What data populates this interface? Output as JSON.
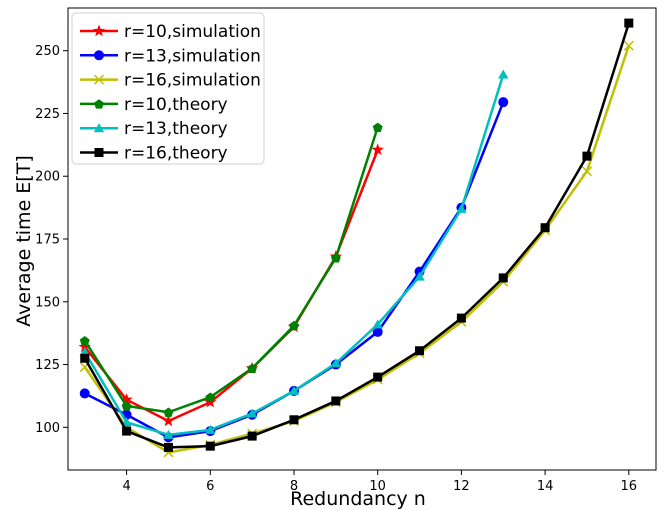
{
  "chart_data": {
    "type": "line",
    "title": "",
    "xlabel": "Redundancy n",
    "ylabel": "Average time E[T]",
    "xlim": [
      2.6,
      16.65
    ],
    "ylim": [
      83,
      267
    ],
    "xticks": [
      4,
      6,
      8,
      10,
      12,
      14,
      16
    ],
    "yticks": [
      100,
      125,
      150,
      175,
      200,
      225,
      250
    ],
    "grid": false,
    "legend_position": "top-left",
    "series": [
      {
        "name": "r=10,simulation",
        "color": "#ff0000",
        "marker": "star",
        "x": [
          3,
          4,
          5,
          6,
          7,
          8,
          9,
          10
        ],
        "y": [
          132,
          111,
          102.5,
          110,
          123.5,
          140,
          168,
          210.5
        ]
      },
      {
        "name": "r=13,simulation",
        "color": "#0000ff",
        "marker": "circle",
        "x": [
          3,
          4,
          5,
          6,
          7,
          8,
          9,
          10,
          11,
          12,
          13
        ],
        "y": [
          113.5,
          105,
          96,
          98.5,
          105,
          114.5,
          125,
          138,
          162,
          187.5,
          229.5
        ]
      },
      {
        "name": "r=16,simulation",
        "color": "#bfbf00",
        "marker": "x",
        "x": [
          3,
          4,
          5,
          6,
          7,
          8,
          9,
          10,
          11,
          12,
          13,
          14,
          15,
          16
        ],
        "y": [
          124,
          100,
          90,
          93,
          97.5,
          102.5,
          110,
          119,
          129.5,
          142,
          158,
          178.5,
          202,
          252
        ]
      },
      {
        "name": "r=10,theory",
        "color": "#008000",
        "marker": "pentagon",
        "x": [
          3,
          4,
          5,
          6,
          7,
          8,
          9,
          10
        ],
        "y": [
          134.5,
          108.5,
          106,
          112,
          123.5,
          140.5,
          167.5,
          219.5
        ]
      },
      {
        "name": "r=13,theory",
        "color": "#00bfbf",
        "marker": "triangle",
        "x": [
          3,
          4,
          5,
          6,
          7,
          8,
          9,
          10,
          11,
          12,
          13
        ],
        "y": [
          130,
          102,
          97,
          99,
          105.5,
          114.5,
          125.5,
          141,
          160,
          187,
          240.5
        ]
      },
      {
        "name": "r=16,theory",
        "color": "#000000",
        "marker": "square",
        "x": [
          3,
          4,
          5,
          6,
          7,
          8,
          9,
          10,
          11,
          12,
          13,
          14,
          15,
          16
        ],
        "y": [
          127.5,
          98.5,
          92,
          92.5,
          96.5,
          103,
          110.5,
          120,
          130.5,
          143.5,
          159.5,
          179.5,
          208,
          261
        ]
      }
    ]
  }
}
